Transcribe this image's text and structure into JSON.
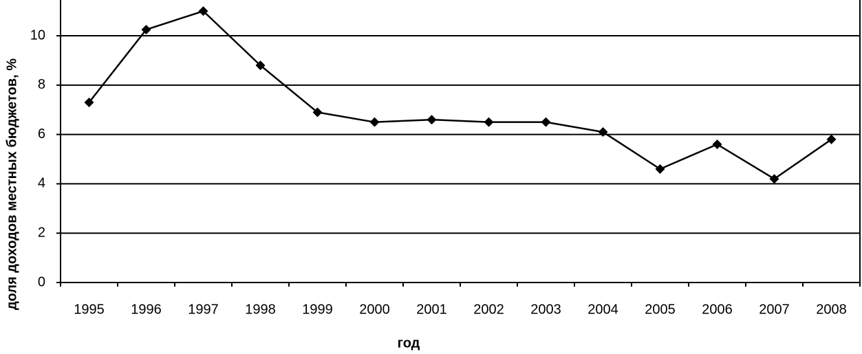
{
  "chart_data": {
    "type": "line",
    "x_label": "год",
    "y_label": "доля доходов местных бюджетов, %",
    "categories": [
      "1995",
      "1996",
      "1997",
      "1998",
      "1999",
      "2000",
      "2001",
      "2002",
      "2003",
      "2004",
      "2005",
      "2006",
      "2007",
      "2008"
    ],
    "values": [
      7.3,
      10.25,
      11.0,
      8.8,
      6.9,
      6.5,
      6.6,
      6.5,
      6.5,
      6.1,
      4.6,
      5.6,
      4.2,
      5.8
    ],
    "color": "#000000",
    "ylim": [
      0,
      11.45
    ],
    "yticks": [
      0,
      2,
      4,
      6,
      8,
      10
    ],
    "grid": true
  }
}
